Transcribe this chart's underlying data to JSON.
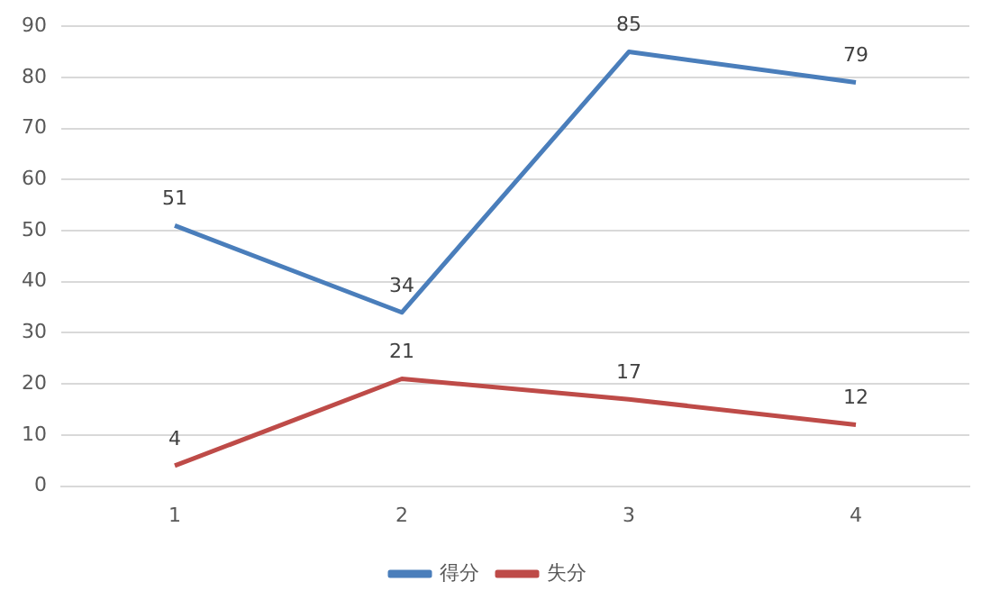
{
  "chart_data": {
    "type": "line",
    "categories": [
      "1",
      "2",
      "3",
      "4"
    ],
    "series": [
      {
        "name": "得分",
        "color": "#4a7ebb",
        "values": [
          51,
          34,
          85,
          79
        ]
      },
      {
        "name": "失分",
        "color": "#be4b48",
        "values": [
          4,
          21,
          17,
          12
        ]
      }
    ],
    "ylim": [
      0,
      90
    ],
    "yticks": [
      0,
      10,
      20,
      30,
      40,
      50,
      60,
      70,
      80,
      90
    ],
    "grid": "y",
    "legend": "bottom",
    "data_labels": true,
    "marker": "none",
    "line_style": "solid"
  }
}
